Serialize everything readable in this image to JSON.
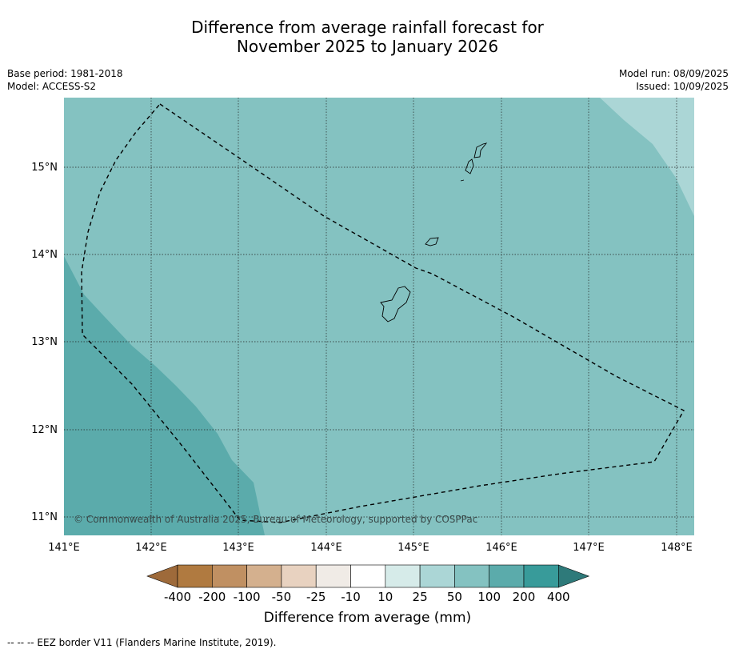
{
  "title_line1": "Difference from average rainfall forecast for",
  "title_line2": "November 2025 to January 2026",
  "base_period": "Base period: 1981-2018",
  "model": "Model: ACCESS-S2",
  "model_run": "Model run: 08/09/2025",
  "issued": "Issued: 10/09/2025",
  "copyright": "© Commonwealth of Australia 2025, Bureau of Meteorology, supported by COSPPac",
  "lon_ticks": [
    "141°E",
    "142°E",
    "143°E",
    "144°E",
    "145°E",
    "146°E",
    "147°E",
    "148°E"
  ],
  "lat_ticks": [
    "15°N",
    "14°N",
    "13°N",
    "12°N",
    "11°N"
  ],
  "colorbar": {
    "title": "Difference from average (mm)",
    "labels": [
      "-400",
      "-200",
      "-100",
      "-50",
      "-25",
      "-10",
      "10",
      "25",
      "50",
      "100",
      "200",
      "400"
    ],
    "colors": {
      "under": "#9e6a3a",
      "bins": [
        "#b07a40",
        "#c09062",
        "#d4b08e",
        "#e8d2c0",
        "#f0ebe6",
        "#ffffff",
        "#d6ebe9",
        "#abd6d6",
        "#84c2c1",
        "#5babab",
        "#389b9a"
      ],
      "over": "#2e7a7a"
    }
  },
  "map_fill": {
    "main": "#84c2c1",
    "wetter_sw": "#5babab",
    "drier_ne": "#abd6d6"
  },
  "footnote": "--  --  -- EEZ border V11 (Flanders Marine Institute, 2019)."
}
